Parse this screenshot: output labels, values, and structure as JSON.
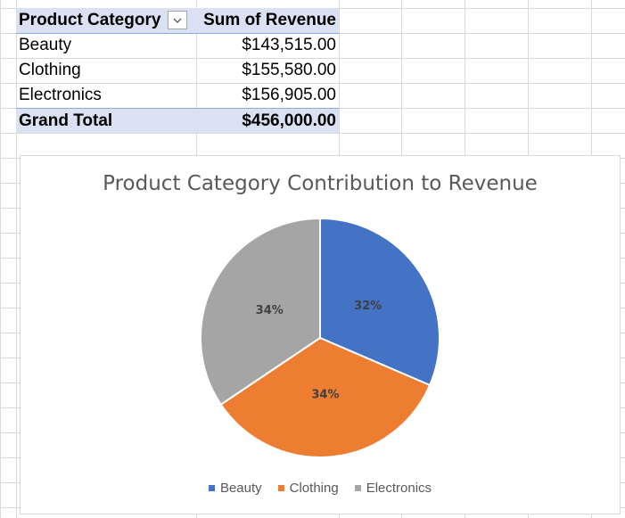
{
  "pivot": {
    "header": {
      "category": "Product Category",
      "revenue": "Sum of Revenue"
    },
    "rows": [
      {
        "category": "Beauty",
        "revenue": "$143,515.00"
      },
      {
        "category": "Clothing",
        "revenue": "$155,580.00"
      },
      {
        "category": "Electronics",
        "revenue": "$156,905.00"
      }
    ],
    "total": {
      "label": "Grand Total",
      "revenue": "$456,000.00"
    }
  },
  "icons": {
    "filter": "chevron-down-icon"
  },
  "chart_data": {
    "type": "pie",
    "title": "Product Category Contribution to Revenue",
    "categories": [
      "Beauty",
      "Clothing",
      "Electronics"
    ],
    "values": [
      143515,
      155580,
      156905
    ],
    "labels": [
      "32%",
      "34%",
      "34%"
    ],
    "colors": [
      "#4472c4",
      "#ed7d31",
      "#a5a5a5"
    ],
    "legend": "bottom"
  }
}
